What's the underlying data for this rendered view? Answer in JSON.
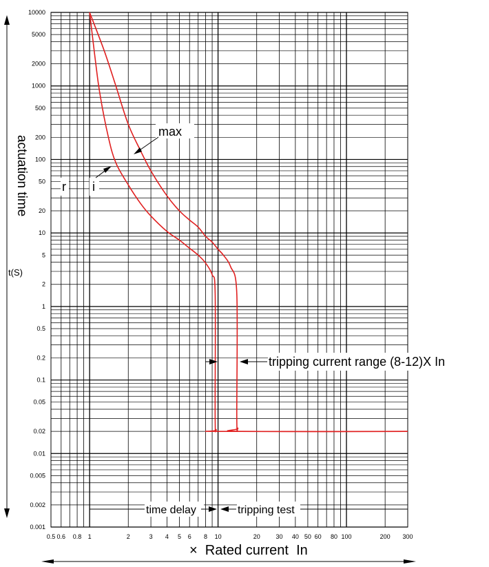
{
  "chart_data": {
    "type": "line",
    "title": "",
    "xlabel": "×  Rated current  In",
    "ylabel": "actuation time",
    "yunit": "t(S)",
    "xscale": "log",
    "yscale": "log",
    "xlim": [
      0.5,
      300
    ],
    "ylim": [
      0.001,
      10000
    ],
    "grid": true,
    "x_ticks": [
      0.5,
      0.6,
      0.8,
      1,
      2,
      3,
      4,
      5,
      6,
      8,
      10,
      20,
      30,
      40,
      50,
      60,
      80,
      100,
      200,
      300
    ],
    "x_tick_labels": [
      "0.5",
      "0.6",
      "0.8",
      "1",
      "2",
      "3",
      "4",
      "5",
      "6",
      "8",
      "10",
      "20",
      "30",
      "40",
      "50",
      "60",
      "80",
      "100",
      "200",
      "300"
    ],
    "y_ticks": [
      0.001,
      0.002,
      0.005,
      0.01,
      0.02,
      0.05,
      0.1,
      0.2,
      0.5,
      1,
      2,
      5,
      10,
      20,
      50,
      100,
      200,
      500,
      1000,
      2000,
      5000,
      10000
    ],
    "y_tick_labels": [
      "0.001",
      "0.002",
      "0.005",
      "0.01",
      "0.02",
      "0.05",
      "0.1",
      "0.2",
      "0.5",
      "1",
      "2",
      "5",
      "10",
      "20",
      "50",
      "100",
      "200",
      "500",
      "1000",
      "2000",
      "5000",
      "10000"
    ],
    "series": [
      {
        "color": "#e02020",
        "points": [
          [
            1.0,
            10000
          ],
          [
            1.1,
            2500
          ],
          [
            1.2,
            800
          ],
          [
            1.4,
            200
          ],
          [
            1.6,
            90
          ],
          [
            2.0,
            45
          ],
          [
            2.5,
            25
          ],
          [
            3.0,
            17
          ],
          [
            4.0,
            10.5
          ],
          [
            5.0,
            8
          ],
          [
            6.0,
            6.2
          ],
          [
            7.0,
            5
          ],
          [
            8.0,
            3.9
          ],
          [
            9.0,
            2.7
          ],
          [
            9.5,
            1.5
          ],
          [
            9.5,
            0.03
          ],
          [
            9.7,
            0.021
          ],
          [
            10.5,
            0.02
          ],
          [
            300,
            0.02
          ]
        ]
      },
      {
        "color": "#e02020",
        "points": [
          [
            1.0,
            10000
          ],
          [
            1.3,
            3000
          ],
          [
            1.6,
            1000
          ],
          [
            2.0,
            300
          ],
          [
            2.5,
            130
          ],
          [
            3.0,
            70
          ],
          [
            4.0,
            32
          ],
          [
            5.0,
            20
          ],
          [
            6.0,
            15
          ],
          [
            7.0,
            12
          ],
          [
            8.0,
            9
          ],
          [
            9.0,
            7.5
          ],
          [
            10.0,
            6
          ],
          [
            11.0,
            5
          ],
          [
            12.5,
            3.5
          ],
          [
            14.0,
            1.5
          ],
          [
            14.0,
            0.03
          ],
          [
            14.3,
            0.022
          ],
          [
            15,
            0.02
          ],
          [
            300,
            0.02
          ]
        ]
      }
    ],
    "annotations": {
      "max": "max",
      "min_r": "r",
      "min_i": "i",
      "tripping_range": "tripping current range (8-12)X In",
      "time_delay": "time delay",
      "tripping_test": "tripping test"
    }
  }
}
